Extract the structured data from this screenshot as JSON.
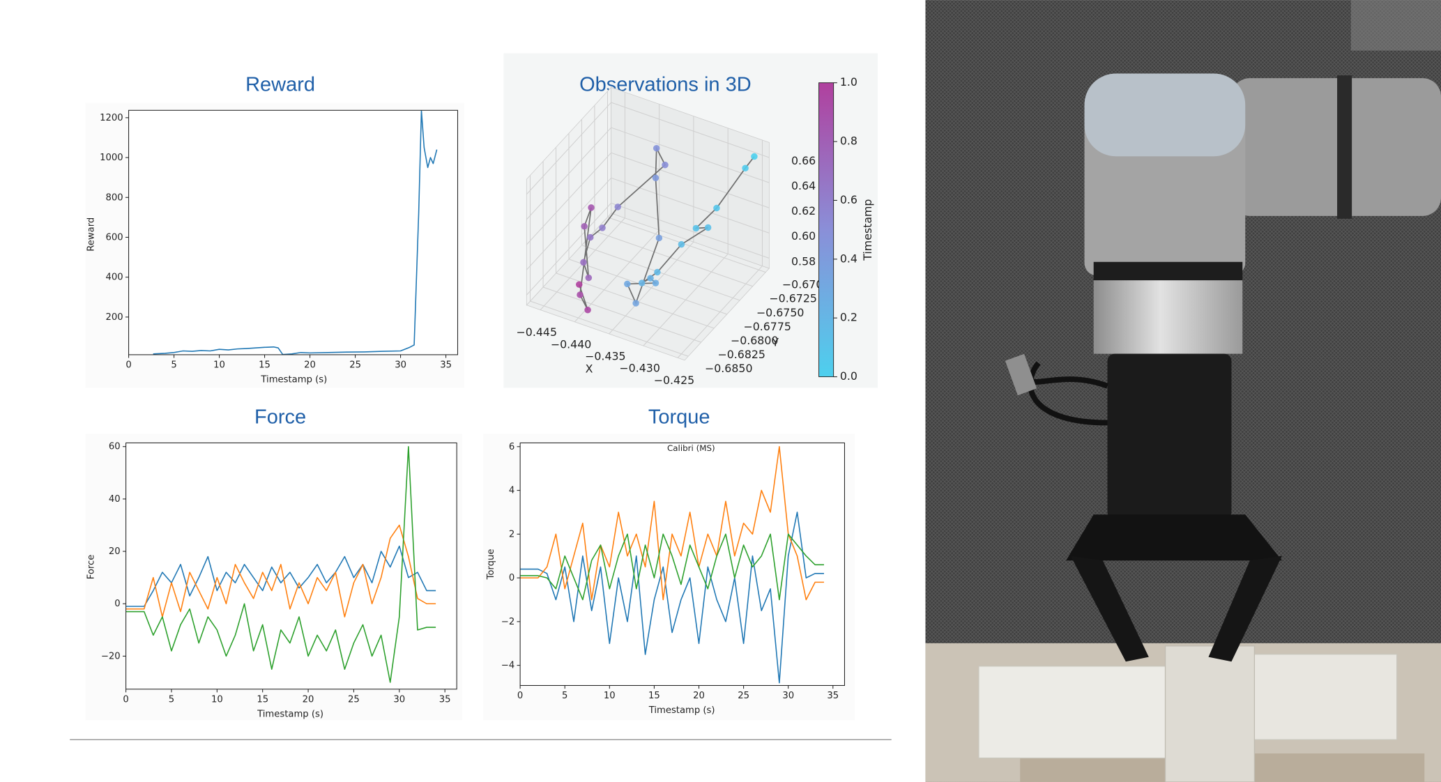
{
  "chart_data": [
    {
      "type": "line",
      "title": "Reward",
      "xlabel": "Timestamp (s)",
      "ylabel": "Reward",
      "color": "#1f77b4",
      "xlim": [
        0,
        36.3
      ],
      "ylim": [
        11,
        1237
      ],
      "xticks": [
        0,
        5,
        10,
        15,
        20,
        25,
        30,
        35
      ],
      "yticks": [
        200,
        400,
        600,
        800,
        1000,
        1200
      ],
      "x": [
        2.7,
        4,
        5,
        6,
        7,
        8,
        9,
        10,
        11,
        12,
        13,
        14,
        15,
        16,
        16.5,
        17,
        18,
        19,
        20,
        22,
        24,
        26,
        28,
        30,
        31,
        31.5,
        32,
        32.3,
        32.6,
        33,
        33.3,
        33.6,
        34
      ],
      "values": [
        15,
        18,
        22,
        30,
        28,
        32,
        30,
        38,
        35,
        40,
        42,
        45,
        48,
        50,
        45,
        12,
        15,
        22,
        20,
        22,
        24,
        25,
        28,
        30,
        48,
        60,
        720,
        1235,
        1050,
        950,
        1000,
        970,
        1040
      ]
    },
    {
      "type": "scatter3d",
      "title": "Observations in 3D",
      "xlabel": "X",
      "ylabel": "Y",
      "colorbar_label": "Timestamp",
      "xlim": [
        -0.447,
        -0.424
      ],
      "ylim": [
        -0.6857,
        -0.6693
      ],
      "zlim": [
        0.572,
        0.672
      ],
      "xticks": [
        {
          "value": -0.445,
          "label": "−0.445"
        },
        {
          "value": -0.44,
          "label": "−0.440"
        },
        {
          "value": -0.435,
          "label": "−0.435"
        },
        {
          "value": -0.43,
          "label": "−0.430"
        },
        {
          "value": -0.425,
          "label": "−0.425"
        }
      ],
      "yticks": [
        {
          "value": -0.685,
          "label": "−0.6850"
        },
        {
          "value": -0.6825,
          "label": "−0.6825"
        },
        {
          "value": -0.68,
          "label": "−0.6800"
        },
        {
          "value": -0.6775,
          "label": "−0.6775"
        },
        {
          "value": -0.675,
          "label": "−0.6750"
        },
        {
          "value": -0.6725,
          "label": "−0.6725"
        },
        {
          "value": -0.67,
          "label": "−0.6700"
        }
      ],
      "zticks": [
        0.58,
        {
          "value": 0.6,
          "label": "0.60"
        },
        0.62,
        0.64,
        0.66
      ],
      "clim": [
        0,
        1
      ],
      "cticks": [
        {
          "value": 0,
          "label": "0.0"
        },
        0.2,
        0.4,
        0.6,
        0.8,
        {
          "value": 1,
          "label": "1.0"
        }
      ],
      "colormap": [
        "#4dd0ee",
        "#8a8fd8",
        "#b0409e"
      ],
      "line_color": "#6e6e6e",
      "x": [
        -0.4255,
        -0.4262,
        -0.4285,
        -0.43,
        -0.429,
        -0.431,
        -0.433,
        -0.4345,
        -0.4325,
        -0.434,
        -0.4355,
        -0.4335,
        -0.435,
        -0.437,
        -0.438,
        -0.436,
        -0.4395,
        -0.441,
        -0.442,
        -0.4415,
        -0.44,
        -0.4425,
        -0.443,
        -0.4405,
        -0.439,
        -0.441
      ],
      "y": [
        -0.6702,
        -0.671,
        -0.6735,
        -0.6755,
        -0.6745,
        -0.677,
        -0.679,
        -0.68,
        -0.681,
        -0.678,
        -0.6815,
        -0.6825,
        -0.676,
        -0.674,
        -0.6725,
        -0.6735,
        -0.678,
        -0.679,
        -0.68,
        -0.682,
        -0.683,
        -0.6805,
        -0.6785,
        -0.684,
        -0.6845,
        -0.6835
      ],
      "z": [
        0.662,
        0.655,
        0.63,
        0.62,
        0.618,
        0.612,
        0.595,
        0.588,
        0.6,
        0.58,
        0.592,
        0.585,
        0.605,
        0.64,
        0.655,
        0.65,
        0.63,
        0.615,
        0.61,
        0.6,
        0.595,
        0.62,
        0.625,
        0.585,
        0.578,
        0.59
      ],
      "c": [
        0,
        0.03,
        0.07,
        0.1,
        0.12,
        0.15,
        0.18,
        0.21,
        0.24,
        0.27,
        0.3,
        0.33,
        0.37,
        0.42,
        0.46,
        0.5,
        0.55,
        0.6,
        0.65,
        0.7,
        0.75,
        0.8,
        0.85,
        0.9,
        0.95,
        1
      ]
    },
    {
      "type": "line",
      "title": "Force",
      "xlabel": "Timestamp (s)",
      "ylabel": "Force",
      "xlim": [
        0,
        36.3
      ],
      "ylim": [
        -32.6,
        61.4
      ],
      "xticks": [
        0,
        5,
        10,
        15,
        20,
        25,
        30,
        35
      ],
      "yticks": [
        {
          "value": -20,
          "label": "−20"
        },
        0,
        20,
        40,
        60
      ],
      "x": [
        0,
        1,
        2,
        3,
        4,
        5,
        6,
        7,
        8,
        9,
        10,
        11,
        12,
        13,
        14,
        15,
        16,
        17,
        18,
        19,
        20,
        21,
        22,
        23,
        24,
        25,
        26,
        27,
        28,
        29,
        30,
        31,
        32,
        33,
        34
      ],
      "series": [
        {
          "color": "#1f77b4",
          "values": [
            -1,
            -1,
            -1,
            5,
            12,
            8,
            15,
            3,
            10,
            18,
            5,
            12,
            8,
            15,
            10,
            5,
            14,
            8,
            12,
            6,
            10,
            15,
            8,
            12,
            18,
            10,
            15,
            8,
            20,
            14,
            22,
            10,
            12,
            5,
            5
          ]
        },
        {
          "color": "#ff7f0e",
          "values": [
            -2,
            -2,
            -2,
            10,
            -5,
            8,
            -3,
            12,
            5,
            -2,
            10,
            0,
            15,
            8,
            2,
            12,
            5,
            15,
            -2,
            8,
            0,
            10,
            5,
            12,
            -5,
            8,
            15,
            0,
            10,
            25,
            30,
            18,
            2,
            0,
            0
          ]
        },
        {
          "color": "#2ca02c",
          "values": [
            -3,
            -3,
            -3,
            -12,
            -5,
            -18,
            -8,
            -2,
            -15,
            -5,
            -10,
            -20,
            -12,
            0,
            -18,
            -8,
            -25,
            -10,
            -15,
            -5,
            -20,
            -12,
            -18,
            -10,
            -25,
            -15,
            -8,
            -20,
            -12,
            -30,
            -5,
            60,
            -10,
            -9,
            -9
          ]
        }
      ]
    },
    {
      "type": "line",
      "title": "Torque",
      "xlabel": "Timestamp (s)",
      "ylabel": "Torque",
      "annotation": "Calibri (MS)",
      "xlim": [
        0,
        36.3
      ],
      "ylim": [
        -4.92,
        6.17
      ],
      "xticks": [
        0,
        5,
        10,
        15,
        20,
        25,
        30,
        35
      ],
      "yticks": [
        {
          "value": -4,
          "label": "−4"
        },
        {
          "value": -2,
          "label": "−2"
        },
        0,
        2,
        4,
        6
      ],
      "x": [
        0,
        1,
        2,
        3,
        4,
        5,
        6,
        7,
        8,
        9,
        10,
        11,
        12,
        13,
        14,
        15,
        16,
        17,
        18,
        19,
        20,
        21,
        22,
        23,
        24,
        25,
        26,
        27,
        28,
        29,
        30,
        31,
        32,
        33,
        34
      ],
      "series": [
        {
          "color": "#1f77b4",
          "values": [
            0.4,
            0.4,
            0.4,
            0.2,
            -1,
            0.5,
            -2,
            1,
            -1.5,
            0.5,
            -3,
            0,
            -2,
            1,
            -3.5,
            -1,
            0.5,
            -2.5,
            -1,
            0,
            -3,
            0.5,
            -1,
            -2,
            0,
            -3,
            1,
            -1.5,
            -0.5,
            -4.8,
            1,
            3,
            0,
            0.2,
            0.2
          ]
        },
        {
          "color": "#ff7f0e",
          "values": [
            0,
            0,
            0,
            0.5,
            2,
            -0.5,
            1,
            2.5,
            -1,
            1.5,
            0.5,
            3,
            1,
            2,
            0.5,
            3.5,
            -1,
            2,
            1,
            3,
            0.5,
            2,
            1,
            3.5,
            1,
            2.5,
            2,
            4,
            3,
            6,
            2,
            1,
            -1,
            -0.2,
            -0.2
          ]
        },
        {
          "color": "#2ca02c",
          "values": [
            0.1,
            0.1,
            0.1,
            0,
            -0.5,
            1,
            0,
            -1,
            0.8,
            1.5,
            -0.5,
            1,
            2,
            -0.5,
            1.5,
            0,
            2,
            1,
            -0.3,
            1.5,
            0.5,
            -0.5,
            1,
            2,
            0,
            1.5,
            0.5,
            1,
            2,
            -1,
            2,
            1.5,
            1,
            0.6,
            0.6
          ]
        }
      ]
    }
  ]
}
